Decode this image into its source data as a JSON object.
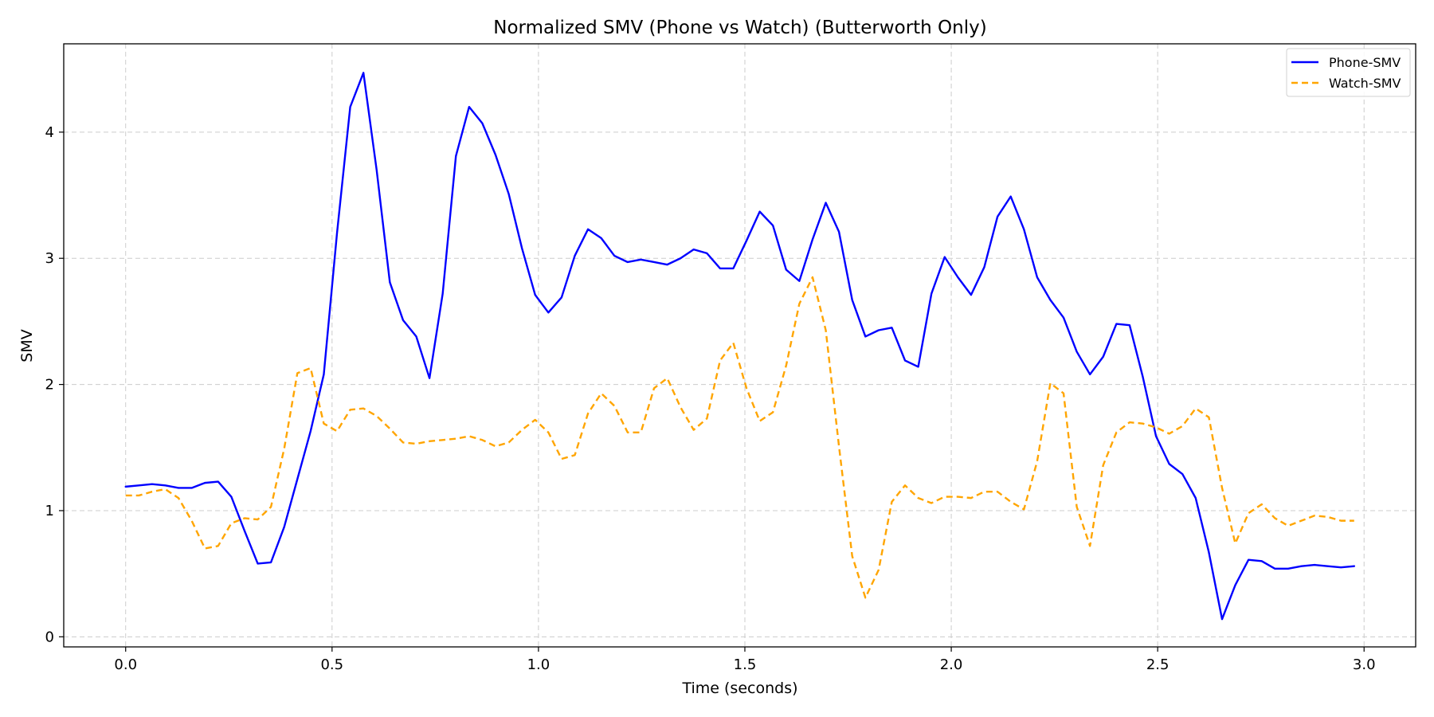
{
  "chart_data": {
    "type": "line",
    "title": "Normalized SMV (Phone vs Watch) (Butterworth Only)",
    "xlabel": "Time (seconds)",
    "ylabel": "SMV",
    "xlim": [
      -0.15,
      3.125
    ],
    "ylim": [
      -0.08,
      4.7
    ],
    "xticks": [
      0.0,
      0.5,
      1.0,
      1.5,
      2.0,
      2.5,
      3.0
    ],
    "xtick_labels": [
      "0.0",
      "0.5",
      "1.0",
      "1.5",
      "2.0",
      "2.5",
      "3.0"
    ],
    "yticks": [
      0,
      1,
      2,
      3,
      4
    ],
    "ytick_labels": [
      "0",
      "1",
      "2",
      "3",
      "4"
    ],
    "grid": true,
    "legend_position": "top-right",
    "x": [
      0.0,
      0.032,
      0.064,
      0.096,
      0.128,
      0.16,
      0.192,
      0.224,
      0.256,
      0.288,
      0.32,
      0.352,
      0.384,
      0.416,
      0.448,
      0.48,
      0.512,
      0.544,
      0.576,
      0.608,
      0.64,
      0.672,
      0.704,
      0.736,
      0.768,
      0.8,
      0.832,
      0.864,
      0.896,
      0.928,
      0.96,
      0.992,
      1.024,
      1.056,
      1.088,
      1.12,
      1.152,
      1.184,
      1.216,
      1.248,
      1.28,
      1.312,
      1.344,
      1.376,
      1.408,
      1.44,
      1.472,
      1.504,
      1.536,
      1.568,
      1.6,
      1.632,
      1.664,
      1.696,
      1.728,
      1.76,
      1.792,
      1.824,
      1.856,
      1.888,
      1.92,
      1.952,
      1.984,
      2.016,
      2.048,
      2.08,
      2.112,
      2.144,
      2.176,
      2.208,
      2.24,
      2.272,
      2.304,
      2.336,
      2.368,
      2.4,
      2.432,
      2.464,
      2.496,
      2.528,
      2.56,
      2.592,
      2.624,
      2.656,
      2.688,
      2.72,
      2.752,
      2.784,
      2.816,
      2.848,
      2.88,
      2.912,
      2.944,
      2.976
    ],
    "series": [
      {
        "name": "Phone-SMV",
        "color": "#0000ff",
        "style": "solid",
        "values": [
          1.19,
          1.2,
          1.21,
          1.2,
          1.18,
          1.18,
          1.22,
          1.23,
          1.11,
          0.84,
          0.58,
          0.59,
          0.87,
          1.25,
          1.63,
          2.08,
          3.2,
          4.2,
          4.47,
          3.7,
          2.81,
          2.51,
          2.38,
          2.05,
          2.72,
          3.81,
          4.2,
          4.07,
          3.82,
          3.51,
          3.08,
          2.71,
          2.57,
          2.69,
          3.02,
          3.23,
          3.16,
          3.02,
          2.97,
          2.99,
          2.97,
          2.95,
          3.0,
          3.07,
          3.04,
          2.92,
          2.92,
          3.14,
          3.37,
          3.26,
          2.91,
          2.82,
          3.15,
          3.44,
          3.21,
          2.67,
          2.38,
          2.43,
          2.45,
          2.19,
          2.14,
          2.72,
          3.01,
          2.85,
          2.71,
          2.93,
          3.33,
          3.49,
          3.23,
          2.85,
          2.67,
          2.53,
          2.26,
          2.08,
          2.22,
          2.48,
          2.47,
          2.06,
          1.59,
          1.37,
          1.29,
          1.1,
          0.67,
          0.14,
          0.41,
          0.61,
          0.6,
          0.54,
          0.54,
          0.56,
          0.57,
          0.56,
          0.55,
          0.56
        ]
      },
      {
        "name": "Watch-SMV",
        "color": "#ffa500",
        "style": "dashed",
        "values": [
          1.12,
          1.12,
          1.15,
          1.17,
          1.1,
          0.92,
          0.7,
          0.72,
          0.9,
          0.94,
          0.93,
          1.03,
          1.49,
          2.09,
          2.13,
          1.69,
          1.63,
          1.8,
          1.81,
          1.75,
          1.65,
          1.54,
          1.53,
          1.55,
          1.56,
          1.57,
          1.59,
          1.56,
          1.51,
          1.54,
          1.64,
          1.72,
          1.62,
          1.41,
          1.44,
          1.77,
          1.93,
          1.83,
          1.62,
          1.62,
          1.97,
          2.05,
          1.82,
          1.64,
          1.73,
          2.19,
          2.33,
          1.97,
          1.71,
          1.78,
          2.15,
          2.64,
          2.85,
          2.43,
          1.51,
          0.64,
          0.31,
          0.53,
          1.07,
          1.2,
          1.1,
          1.06,
          1.11,
          1.11,
          1.1,
          1.15,
          1.15,
          1.07,
          1.01,
          1.39,
          2.01,
          1.93,
          1.03,
          0.72,
          1.36,
          1.62,
          1.7,
          1.69,
          1.66,
          1.61,
          1.67,
          1.81,
          1.74,
          1.18,
          0.74,
          0.98,
          1.05,
          0.94,
          0.88,
          0.92,
          0.96,
          0.95,
          0.92,
          0.92
        ]
      }
    ]
  }
}
